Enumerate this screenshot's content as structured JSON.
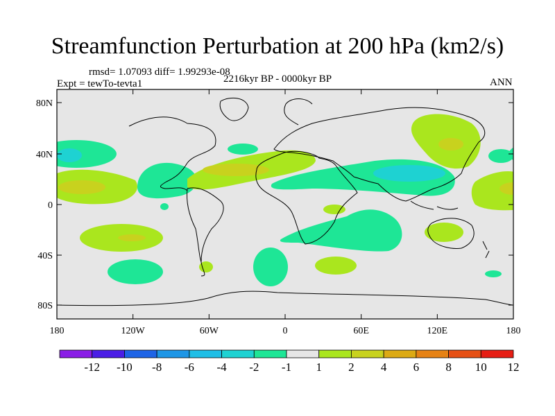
{
  "header": {
    "title": "Streamfunction Perturbation at 200 hPa (km2/s)",
    "stats": "rmsd= 1.07093 diff= 1.99293e-08",
    "period": "2216kyr BP - 0000kyr BP",
    "experiment": "Expt = tewTo-tevta1",
    "season": "ANN"
  },
  "map": {
    "lat_ticks": [
      "80N",
      "40N",
      "0",
      "40S",
      "80S"
    ],
    "lon_ticks": [
      "180",
      "120W",
      "60W",
      "0",
      "60E",
      "120E",
      "180"
    ],
    "background_color": "#e6e6e6"
  },
  "colorbar": {
    "labels": [
      "-12",
      "-10",
      "-8",
      "-6",
      "-4",
      "-2",
      "-1",
      "1",
      "2",
      "4",
      "6",
      "8",
      "10",
      "12"
    ],
    "colors": [
      "#8a1ee6",
      "#4b1ee6",
      "#1e64e6",
      "#1e96e6",
      "#1ebee6",
      "#1ed2d2",
      "#1ee696",
      "#e6e6e6",
      "#aae61e",
      "#c8d21e",
      "#dcaa14",
      "#e68214",
      "#e65014",
      "#e61e14"
    ]
  }
}
